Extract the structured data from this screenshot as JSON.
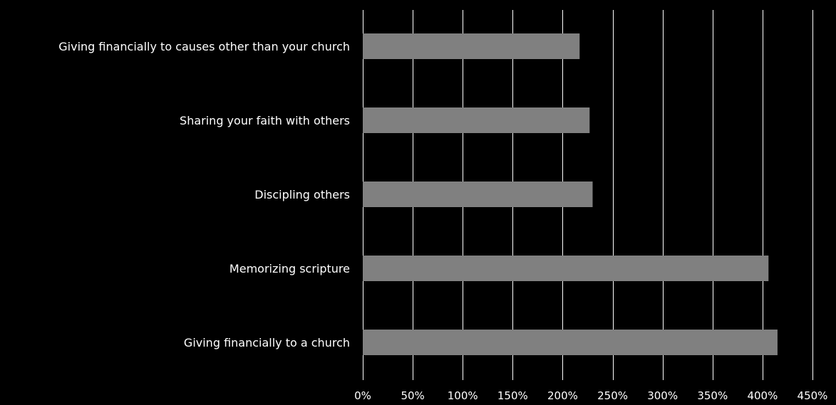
{
  "chart_data": {
    "type": "bar",
    "orientation": "horizontal",
    "title": "",
    "xlabel": "",
    "ylabel": "",
    "categories": [
      "Giving financially to causes other than your church",
      "Sharing your faith with others",
      "Discipling others",
      "Memorizing scripture",
      "Giving financially to a church"
    ],
    "values": [
      217,
      227,
      230,
      406,
      415
    ],
    "unit": "%",
    "xlim": [
      0,
      450
    ],
    "xticks": [
      0,
      50,
      100,
      150,
      200,
      250,
      300,
      350,
      400,
      450
    ],
    "xtick_labels": [
      "0%",
      "50%",
      "100%",
      "150%",
      "200%",
      "250%",
      "300%",
      "350%",
      "400%",
      "450%"
    ],
    "grid": "vertical",
    "legend": "none",
    "colors": {
      "background": "#000000",
      "bar": "#808080",
      "grid": "#ffffff",
      "text": "#ffffff"
    }
  }
}
